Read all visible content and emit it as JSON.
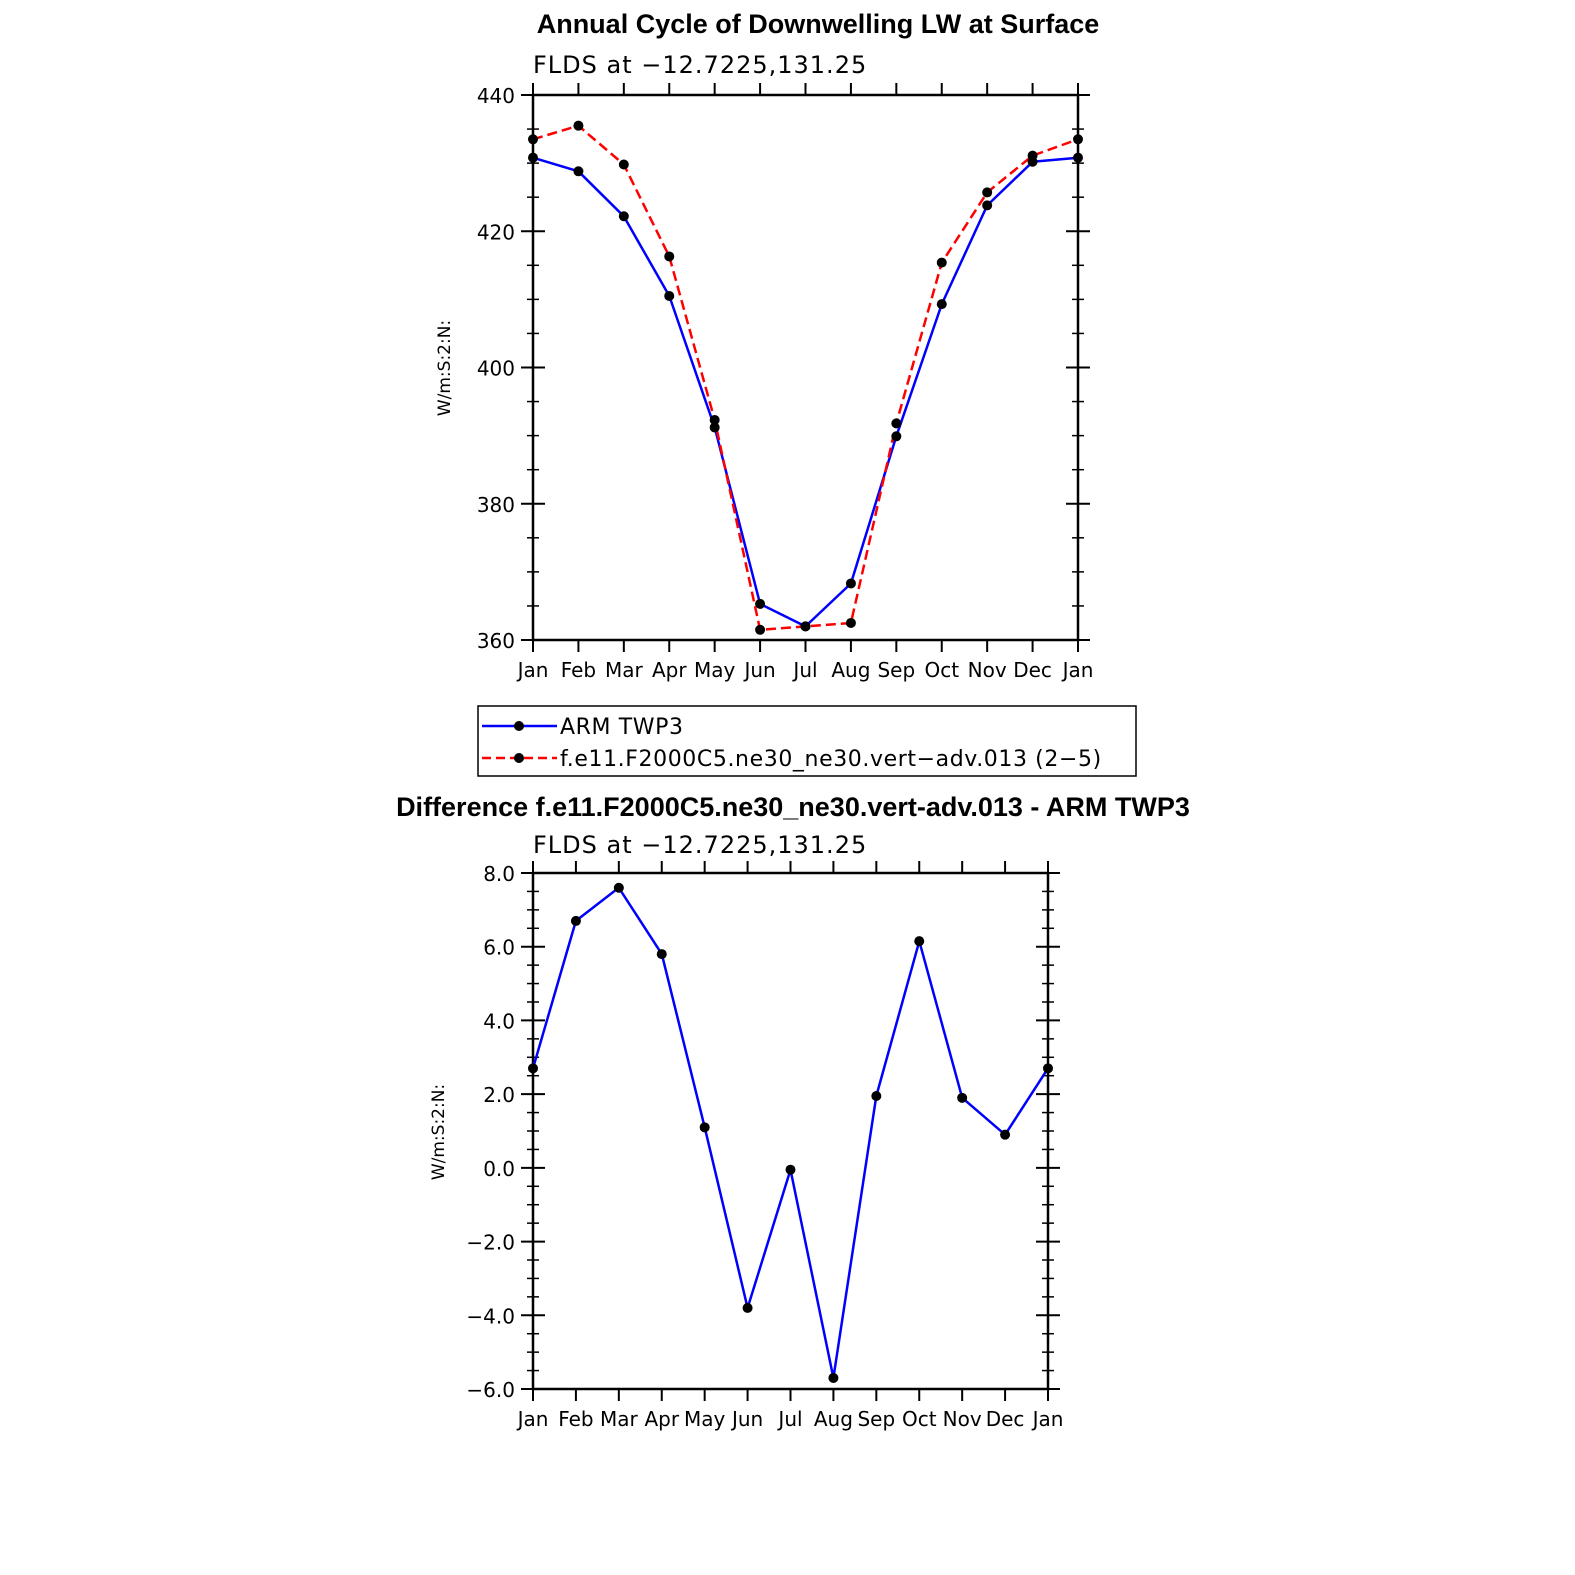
{
  "chart_data": [
    {
      "type": "line",
      "title": "Annual Cycle of Downwelling LW at Surface",
      "subtitle": "FLDS at −12.7225,131.25",
      "ylabel": "W/m:S:2:N:",
      "xlabel": "",
      "categories": [
        "Jan",
        "Feb",
        "Mar",
        "Apr",
        "May",
        "Jun",
        "Jul",
        "Aug",
        "Sep",
        "Oct",
        "Nov",
        "Dec",
        "Jan"
      ],
      "ylim": [
        360,
        440
      ],
      "yticks": [
        "360",
        "380",
        "400",
        "420",
        "440"
      ],
      "grid": false,
      "legend_position": "bottom",
      "series": [
        {
          "name": "ARM TWP3",
          "color": "#0000ff",
          "dash": "solid",
          "values": [
            430.8,
            428.8,
            422.2,
            410.5,
            391.2,
            365.3,
            362.0,
            368.3,
            389.9,
            409.3,
            423.8,
            430.2,
            430.8
          ]
        },
        {
          "name": "f.e11.F2000C5.ne30_ne30.vert−adv.013 (2−5)",
          "color": "#ff0000",
          "dash": "dashed",
          "values": [
            433.5,
            435.5,
            429.8,
            416.3,
            392.3,
            361.5,
            362.0,
            362.5,
            391.8,
            415.4,
            425.7,
            431.1,
            433.5
          ]
        }
      ]
    },
    {
      "type": "line",
      "title": "Difference f.e11.F2000C5.ne30_ne30.vert-adv.013 - ARM TWP3",
      "subtitle": "FLDS at −12.7225,131.25",
      "ylabel": "W/m:S:2:N:",
      "xlabel": "",
      "categories": [
        "Jan",
        "Feb",
        "Mar",
        "Apr",
        "May",
        "Jun",
        "Jul",
        "Aug",
        "Sep",
        "Oct",
        "Nov",
        "Dec",
        "Jan"
      ],
      "ylim": [
        -6.0,
        8.0
      ],
      "yticks": [
        "−6.0",
        "−4.0",
        "−2.0",
        "0.0",
        "2.0",
        "4.0",
        "6.0",
        "8.0"
      ],
      "grid": false,
      "series": [
        {
          "color": "#0000ff",
          "dash": "solid",
          "values": [
            2.7,
            6.7,
            7.6,
            5.8,
            1.1,
            -3.8,
            -0.05,
            -5.7,
            1.95,
            6.15,
            1.9,
            0.9,
            2.7
          ]
        }
      ]
    }
  ]
}
